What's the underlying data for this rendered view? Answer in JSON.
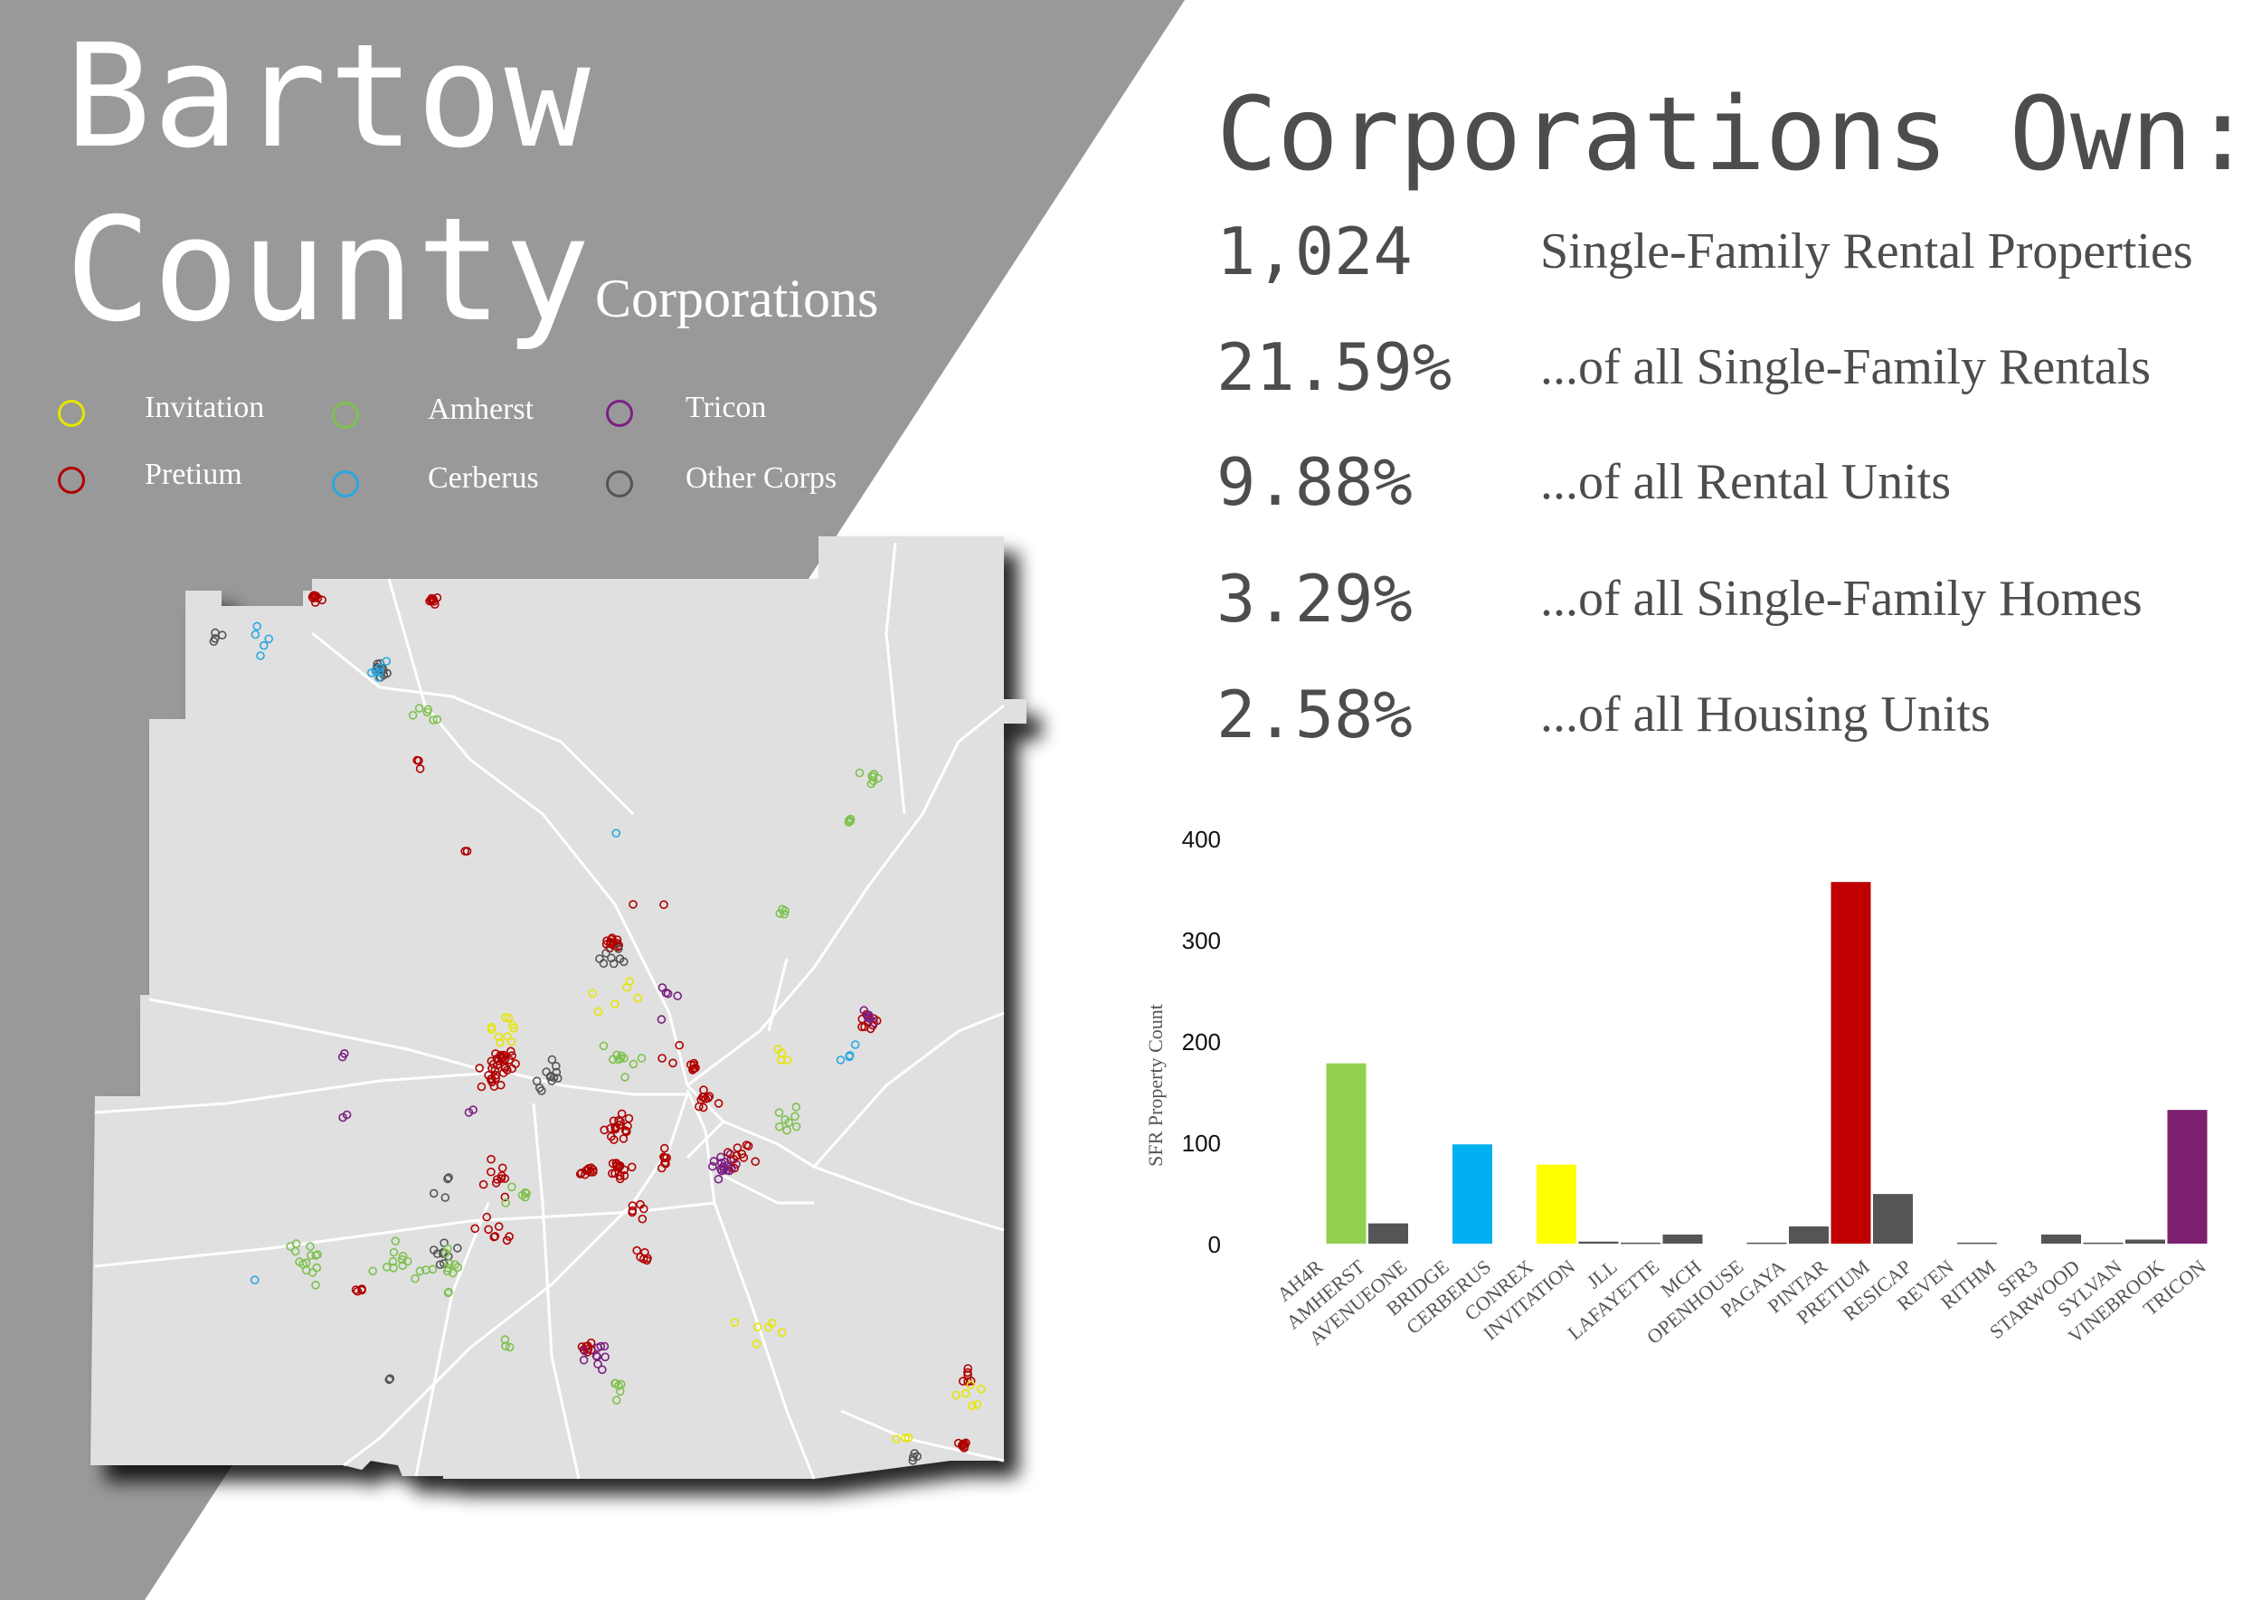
{
  "header": {
    "title_line1": "Bartow",
    "title_line2": "County",
    "subtitle": "Corporations"
  },
  "legend": [
    {
      "label": "Invitation",
      "color": "#e6e600"
    },
    {
      "label": "Amherst",
      "color": "#7fc14f"
    },
    {
      "label": "Tricon",
      "color": "#7b1f82"
    },
    {
      "label": "Pretium",
      "color": "#b00000"
    },
    {
      "label": "Cerberus",
      "color": "#29a8e0"
    },
    {
      "label": "Other Corps",
      "color": "#555555"
    }
  ],
  "stats": {
    "heading": "Corporations Own:",
    "rows": [
      {
        "value": "1,024",
        "desc": "Single-Family Rental Properties"
      },
      {
        "value": "21.59%",
        "desc": "...of all Single-Family Rentals"
      },
      {
        "value": "9.88%",
        "desc": "...of all Rental Units"
      },
      {
        "value": "3.29%",
        "desc": "...of all Single-Family Homes"
      },
      {
        "value": "2.58%",
        "desc": "...of all Housing Units"
      }
    ]
  },
  "chart_data": {
    "type": "bar",
    "title": "",
    "xlabel": "",
    "ylabel": "SFR Property Count",
    "ylim": [
      0,
      400
    ],
    "yticks": [
      0,
      100,
      200,
      300,
      400
    ],
    "grid": false,
    "categories": [
      "AH4R",
      "AMHERST",
      "AVENUEONE",
      "BRIDGE",
      "CERBERUS",
      "CONREX",
      "INVITATION",
      "JLL",
      "LAFAYETTE",
      "MCH",
      "OPENHOUSE",
      "PAGAYA",
      "PINTAR",
      "PRETIUM",
      "RESICAP",
      "REVEN",
      "RITHM",
      "SFR3",
      "STARWOOD",
      "SYLVAN",
      "VINEBROOK",
      "TRICON"
    ],
    "values": [
      0,
      178,
      20,
      0,
      98,
      0,
      78,
      2,
      1,
      9,
      0,
      1,
      17,
      357,
      49,
      0,
      1,
      0,
      9,
      1,
      4,
      132
    ],
    "bar_colors": [
      "#555555",
      "#92d050",
      "#555555",
      "#555555",
      "#00b0f0",
      "#555555",
      "#ffff00",
      "#555555",
      "#555555",
      "#555555",
      "#555555",
      "#555555",
      "#555555",
      "#c00000",
      "#555555",
      "#555555",
      "#555555",
      "#555555",
      "#555555",
      "#555555",
      "#555555",
      "#7b1f6e"
    ]
  }
}
